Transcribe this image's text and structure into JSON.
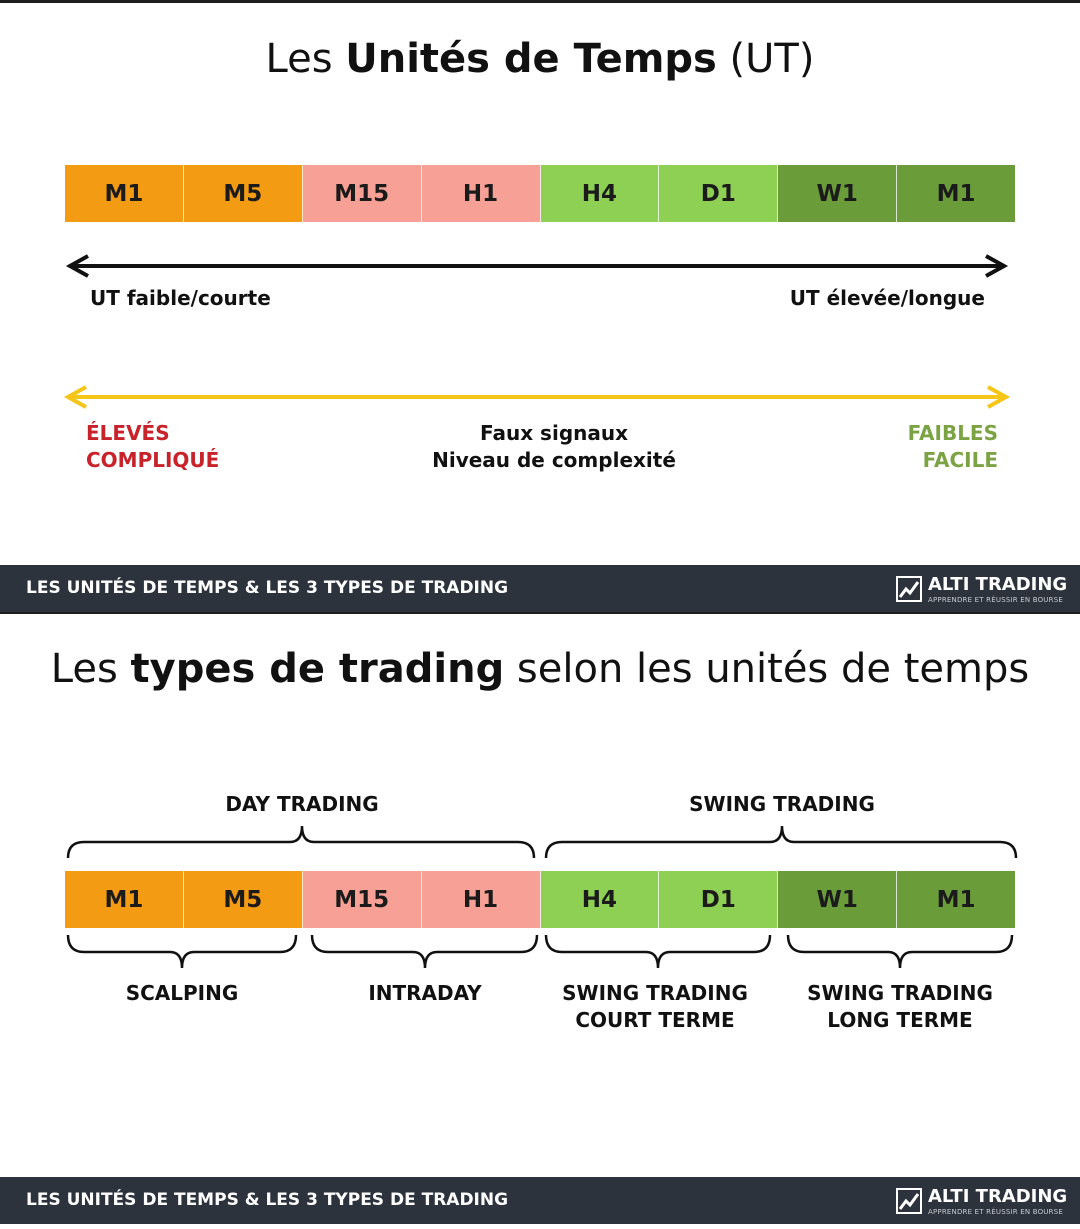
{
  "section1": {
    "title_pre": "Les ",
    "title_bold": "Unités de Temps",
    "title_post": " (UT)",
    "timeframes": [
      "M1",
      "M5",
      "M15",
      "H1",
      "H4",
      "D1",
      "W1",
      "M1"
    ],
    "arrow_left_label": "UT faible/courte",
    "arrow_right_label": "UT élevée/longue",
    "left_line1": "ÉLEVÉS",
    "left_line2": "COMPLIQUÉ",
    "center_line1": "Faux signaux",
    "center_line2": "Niveau de complexité",
    "right_line1": "FAIBLES",
    "right_line2": "FACILE"
  },
  "section2": {
    "title_pre": "Les ",
    "title_bold": "types de trading",
    "title_post": " selon les unités de temps",
    "timeframes": [
      "M1",
      "M5",
      "M15",
      "H1",
      "H4",
      "D1",
      "W1",
      "M1"
    ],
    "top_groups": [
      "DAY TRADING",
      "SWING TRADING"
    ],
    "bottom_groups": [
      {
        "line1": "SCALPING",
        "line2": ""
      },
      {
        "line1": "INTRADAY",
        "line2": ""
      },
      {
        "line1": "SWING TRADING",
        "line2": "COURT TERME"
      },
      {
        "line1": "SWING TRADING",
        "line2": "LONG TERME"
      }
    ]
  },
  "footer": {
    "text": "LES UNITÉS DE TEMPS & LES 3 TYPES DE TRADING",
    "brand": "ALTI TRADING",
    "tagline": "APPRENDRE ET RÉUSSIR EN BOURSE"
  },
  "colors": {
    "orange": "#f39b12",
    "pink": "#f7a095",
    "light_green": "#8dd054",
    "dark_green": "#6a9d3a",
    "yellow_arrow": "#f5c518",
    "red_text": "#c8222a",
    "green_text": "#7ba344",
    "footer_bg": "#2d333d"
  }
}
